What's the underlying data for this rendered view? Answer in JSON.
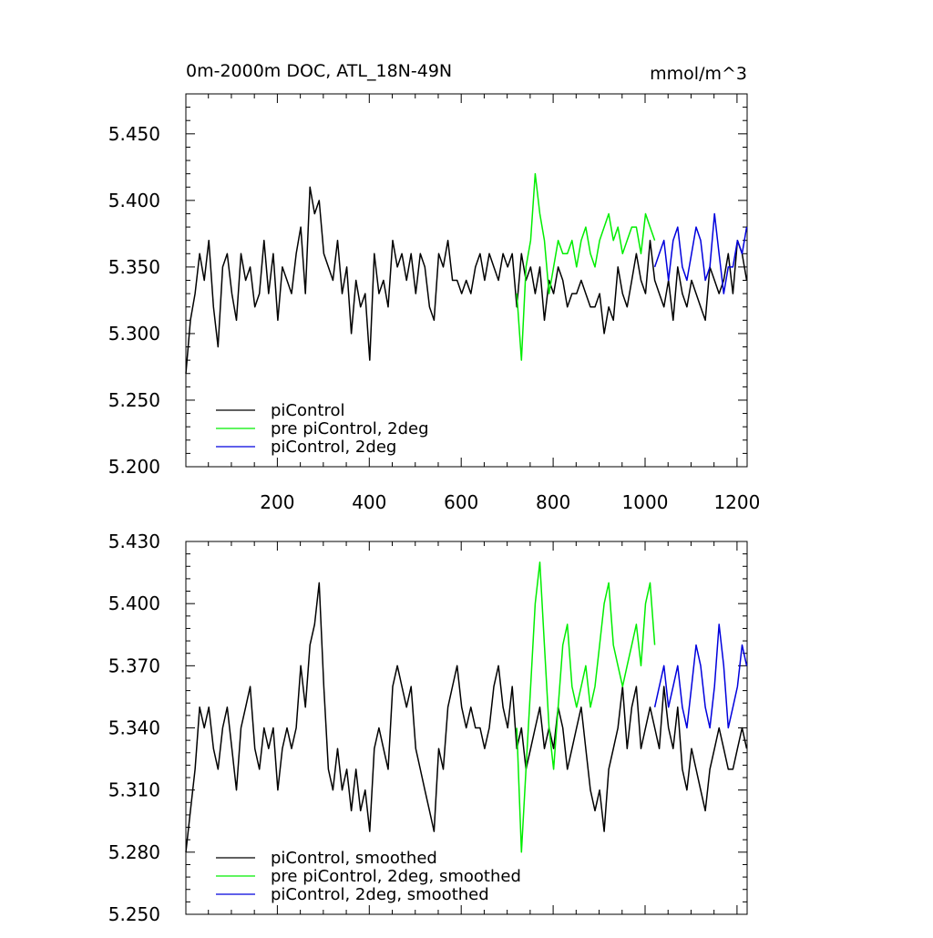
{
  "chart_data": [
    {
      "type": "line",
      "title": "0m-2000m DOC, ATL_18N-49N",
      "units": "mmol/m^3",
      "xlim": [
        1,
        1222
      ],
      "ylim": [
        5.2,
        5.48
      ],
      "x_ticks": [
        200,
        400,
        600,
        800,
        1000,
        1200
      ],
      "x_tick_labels": [
        "200",
        "400",
        "600",
        "800",
        "1000",
        "1200"
      ],
      "y_ticks": [
        5.2,
        5.25,
        5.3,
        5.35,
        5.4,
        5.45
      ],
      "y_tick_labels": [
        "5.200",
        "5.250",
        "5.300",
        "5.350",
        "5.400",
        "5.450"
      ],
      "legend_position": "bottom-left",
      "series": [
        {
          "name": "piControl",
          "color": "#000000",
          "x_start": 1,
          "x_step": 10,
          "values": [
            5.27,
            5.31,
            5.33,
            5.36,
            5.34,
            5.37,
            5.32,
            5.29,
            5.35,
            5.36,
            5.33,
            5.31,
            5.36,
            5.34,
            5.35,
            5.32,
            5.33,
            5.37,
            5.33,
            5.36,
            5.31,
            5.35,
            5.34,
            5.33,
            5.36,
            5.38,
            5.33,
            5.41,
            5.39,
            5.4,
            5.36,
            5.35,
            5.34,
            5.37,
            5.33,
            5.35,
            5.3,
            5.34,
            5.32,
            5.33,
            5.28,
            5.36,
            5.33,
            5.34,
            5.32,
            5.37,
            5.35,
            5.36,
            5.34,
            5.36,
            5.33,
            5.36,
            5.35,
            5.32,
            5.31,
            5.36,
            5.35,
            5.37,
            5.34,
            5.34,
            5.33,
            5.34,
            5.33,
            5.35,
            5.36,
            5.34,
            5.36,
            5.35,
            5.34,
            5.36,
            5.35,
            5.36,
            5.32,
            5.36,
            5.34,
            5.35,
            5.33,
            5.35,
            5.31,
            5.34,
            5.33,
            5.35,
            5.34,
            5.32,
            5.33,
            5.33,
            5.34,
            5.33,
            5.32,
            5.32,
            5.33,
            5.3,
            5.32,
            5.31,
            5.35,
            5.33,
            5.32,
            5.34,
            5.36,
            5.34,
            5.33,
            5.37,
            5.34,
            5.33,
            5.32,
            5.34,
            5.31,
            5.35,
            5.33,
            5.32,
            5.34,
            5.33,
            5.32,
            5.31,
            5.35,
            5.34,
            5.33,
            5.34,
            5.36,
            5.33,
            5.37,
            5.36,
            5.34
          ]
        },
        {
          "name": "pre piControl, 2deg",
          "color": "#00ee00",
          "x_start": 721,
          "x_step": 10,
          "values": [
            5.33,
            5.28,
            5.35,
            5.37,
            5.42,
            5.39,
            5.37,
            5.33,
            5.35,
            5.37,
            5.36,
            5.36,
            5.37,
            5.35,
            5.37,
            5.38,
            5.36,
            5.35,
            5.37,
            5.38,
            5.39,
            5.37,
            5.38,
            5.36,
            5.37,
            5.38,
            5.38,
            5.36,
            5.39,
            5.38,
            5.37
          ]
        },
        {
          "name": "piControl, 2deg",
          "color": "#0000dd",
          "x_start": 1021,
          "x_step": 10,
          "values": [
            5.35,
            5.36,
            5.37,
            5.34,
            5.37,
            5.38,
            5.35,
            5.34,
            5.36,
            5.38,
            5.37,
            5.34,
            5.35,
            5.39,
            5.36,
            5.33,
            5.35,
            5.35,
            5.37,
            5.36,
            5.38
          ]
        }
      ]
    },
    {
      "type": "line",
      "title": "",
      "xlim": [
        1,
        1222
      ],
      "ylim": [
        5.25,
        5.43
      ],
      "x_ticks": [
        200,
        400,
        600,
        800,
        1000,
        1200
      ],
      "y_ticks": [
        5.25,
        5.28,
        5.31,
        5.34,
        5.37,
        5.4,
        5.43
      ],
      "y_tick_labels": [
        "5.250",
        "5.280",
        "5.310",
        "5.340",
        "5.370",
        "5.400",
        "5.430"
      ],
      "legend_position": "bottom-left",
      "series": [
        {
          "name": "piControl, smoothed",
          "color": "#000000",
          "x_start": 1,
          "x_step": 10,
          "values": [
            5.28,
            5.3,
            5.32,
            5.35,
            5.34,
            5.35,
            5.33,
            5.32,
            5.34,
            5.35,
            5.33,
            5.31,
            5.34,
            5.35,
            5.36,
            5.33,
            5.32,
            5.34,
            5.33,
            5.34,
            5.31,
            5.33,
            5.34,
            5.33,
            5.34,
            5.37,
            5.35,
            5.38,
            5.39,
            5.41,
            5.36,
            5.32,
            5.31,
            5.33,
            5.31,
            5.32,
            5.3,
            5.32,
            5.3,
            5.31,
            5.29,
            5.33,
            5.34,
            5.33,
            5.32,
            5.36,
            5.37,
            5.36,
            5.35,
            5.36,
            5.33,
            5.32,
            5.31,
            5.3,
            5.29,
            5.33,
            5.32,
            5.35,
            5.36,
            5.37,
            5.35,
            5.34,
            5.35,
            5.34,
            5.34,
            5.33,
            5.34,
            5.36,
            5.37,
            5.35,
            5.34,
            5.36,
            5.33,
            5.34,
            5.32,
            5.33,
            5.34,
            5.35,
            5.33,
            5.34,
            5.33,
            5.35,
            5.34,
            5.32,
            5.33,
            5.34,
            5.35,
            5.33,
            5.31,
            5.3,
            5.31,
            5.29,
            5.32,
            5.33,
            5.34,
            5.36,
            5.33,
            5.35,
            5.36,
            5.33,
            5.34,
            5.35,
            5.34,
            5.33,
            5.36,
            5.34,
            5.33,
            5.35,
            5.32,
            5.31,
            5.33,
            5.32,
            5.31,
            5.3,
            5.32,
            5.33,
            5.34,
            5.33,
            5.32,
            5.32,
            5.33,
            5.34,
            5.33
          ]
        },
        {
          "name": "pre piControl, 2deg, smoothed",
          "color": "#00ee00",
          "x_start": 721,
          "x_step": 10,
          "values": [
            5.34,
            5.28,
            5.32,
            5.36,
            5.4,
            5.42,
            5.38,
            5.34,
            5.32,
            5.35,
            5.38,
            5.39,
            5.36,
            5.35,
            5.36,
            5.37,
            5.35,
            5.36,
            5.38,
            5.4,
            5.41,
            5.38,
            5.37,
            5.36,
            5.37,
            5.38,
            5.39,
            5.37,
            5.4,
            5.41,
            5.38
          ]
        },
        {
          "name": "piControl, 2deg, smoothed",
          "color": "#0000dd",
          "x_start": 1021,
          "x_step": 10,
          "values": [
            5.35,
            5.36,
            5.37,
            5.35,
            5.36,
            5.37,
            5.35,
            5.34,
            5.36,
            5.38,
            5.37,
            5.35,
            5.34,
            5.36,
            5.39,
            5.37,
            5.34,
            5.35,
            5.36,
            5.38,
            5.37
          ]
        }
      ]
    }
  ]
}
